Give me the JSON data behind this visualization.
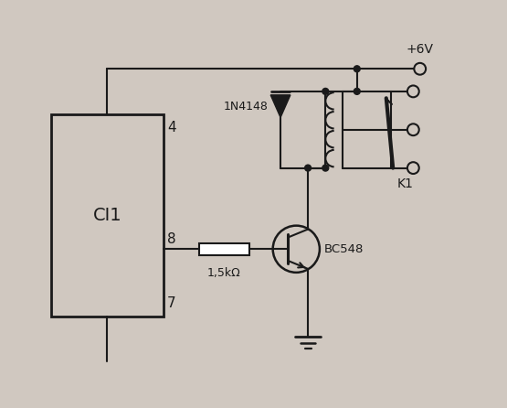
{
  "background_color": "#d0c8c0",
  "line_color": "#1a1a1a",
  "labels": {
    "vcc": "+6V",
    "diode": "1N4148",
    "transistor": "BC548",
    "resistor": "1,5kΩ",
    "relay": "K1",
    "ic": "CI1",
    "pin4": "4",
    "pin7": "7",
    "pin8": "8"
  }
}
